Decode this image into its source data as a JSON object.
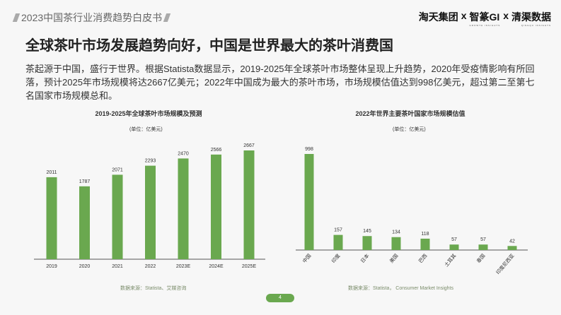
{
  "header": {
    "report_title": "2023中国茶行业消费趋势白皮书",
    "logos": [
      "淘天集团",
      "x",
      "智篆GI",
      "x",
      "清渠数据"
    ],
    "logo_subtexts": [
      "GROWTH INSIGHTS",
      "QINGQU INSIGHTS"
    ]
  },
  "main": {
    "title": "全球茶叶市场发展趋势向好，中国是世界最大的茶叶消费国",
    "paragraph": "茶起源于中国，盛行于世界。根据Statista数据显示，2019-2025年全球茶叶市场整体呈现上升趋势，2020年受疫情影响有所回落，预计2025年市场规模将达2667亿美元；2022年中国成为最大的茶叶市场，市场规模估值达到998亿美元，超过第二至第七名国家市场规模总和。"
  },
  "page_number": "4",
  "colors": {
    "bar": "#6aa84f",
    "accent": "#6aa84f"
  },
  "chart_data": [
    {
      "type": "bar",
      "title": "2019-2025年全球茶叶市场规模及预测",
      "unit": "(单位：亿美元)",
      "categories": [
        "2019",
        "2020",
        "2021",
        "2022",
        "2023E",
        "2024E",
        "2025E"
      ],
      "values": [
        2011,
        1787,
        2071,
        2293,
        2470,
        2566,
        2667
      ],
      "source": "数据来源：Statista、艾媒咨询"
    },
    {
      "type": "bar",
      "title": "2022年世界主要茶叶国家市场规模估值",
      "unit": "(单位：亿美元)",
      "categories": [
        "中国",
        "印度",
        "日本",
        "美国",
        "巴西",
        "土耳其",
        "泰国",
        "印度尼西亚"
      ],
      "values": [
        998,
        157,
        145,
        134,
        118,
        57,
        57,
        42
      ],
      "source": "数据来源：Statista， Consumer Market Insights"
    }
  ]
}
